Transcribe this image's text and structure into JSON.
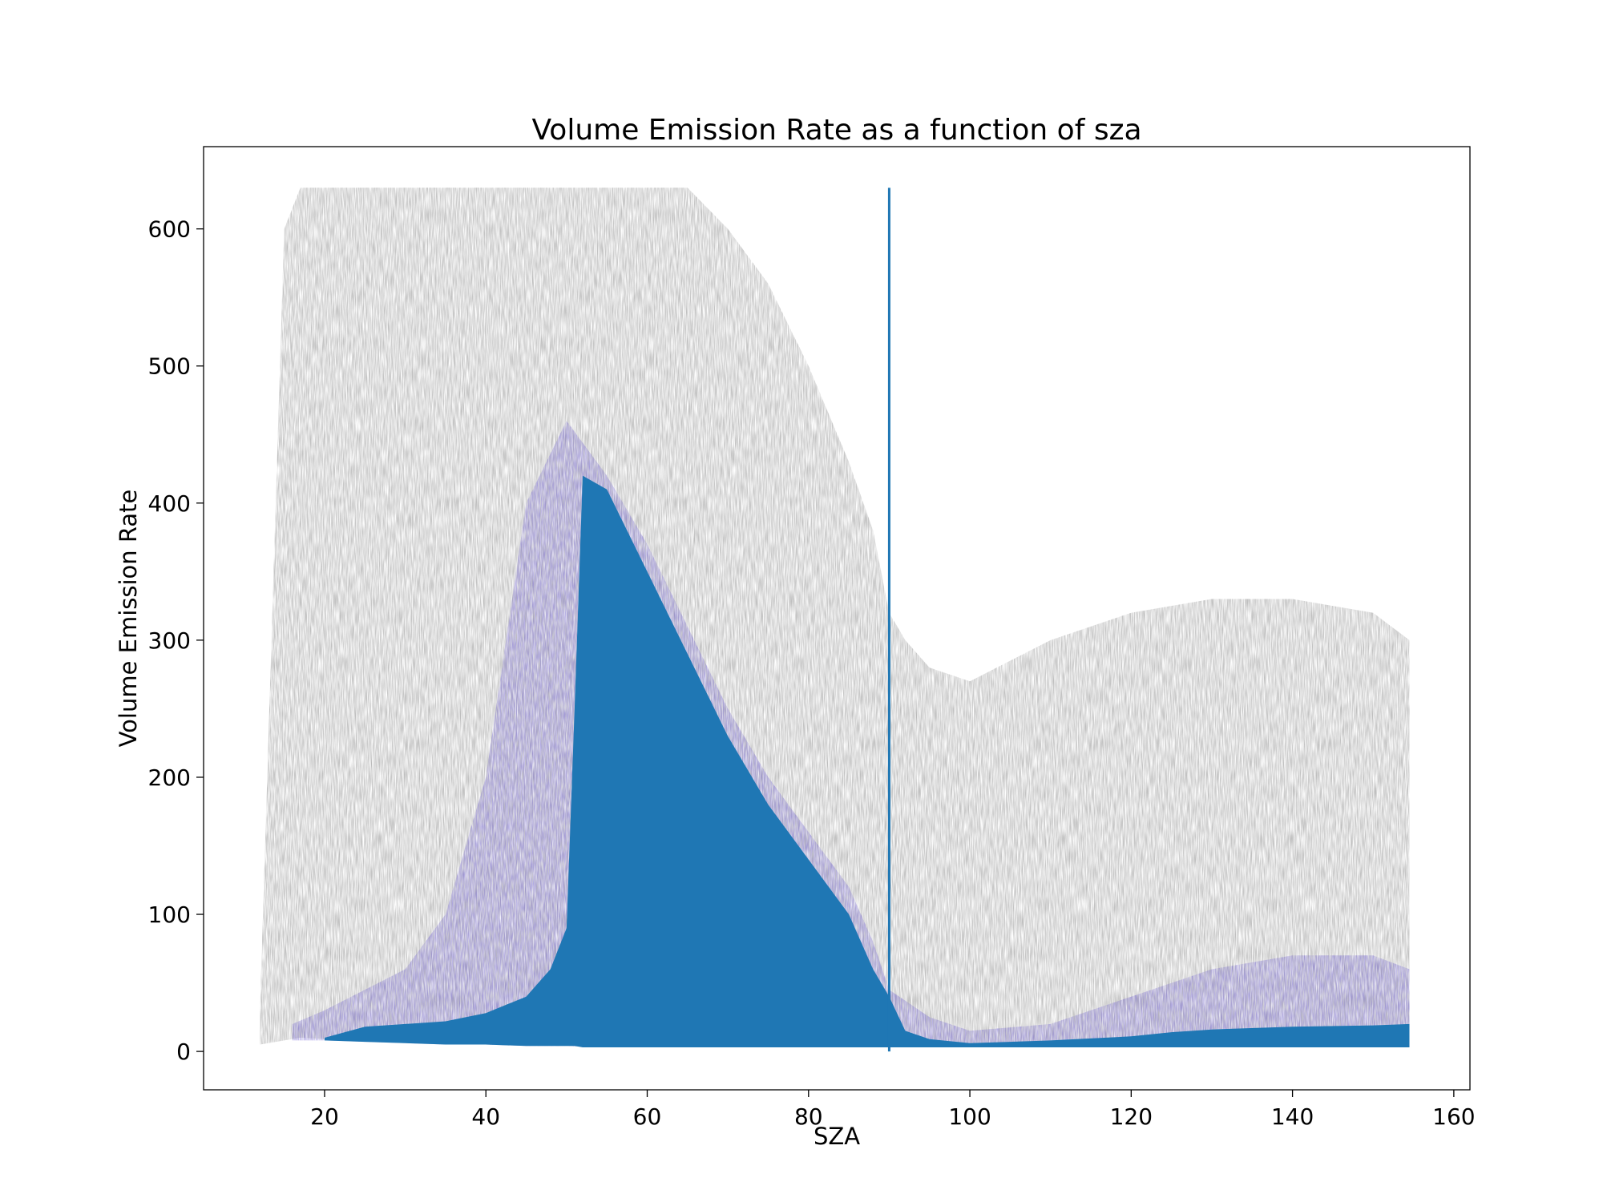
{
  "chart_data": {
    "type": "scatter",
    "title": "Volume Emission Rate as a function of sza",
    "xlabel": "SZA",
    "ylabel": "Volume Emission Rate",
    "xlim": [
      5,
      162
    ],
    "ylim": [
      -28,
      660
    ],
    "xticks": [
      20,
      40,
      60,
      80,
      100,
      120,
      140,
      160
    ],
    "yticks": [
      0,
      100,
      200,
      300,
      400,
      500,
      600
    ],
    "grid": false,
    "legend": "none",
    "colors": {
      "scatter_gray": "#7f7f7f",
      "scatter_purple": "#6a5acd",
      "scatter_blue": "#1f77b4",
      "vline": "#1f77b4"
    },
    "vertical_line": {
      "x": 90,
      "y_from": 0,
      "y_to": 630
    },
    "series": [
      {
        "color": "#7f7f7f",
        "opacity": "faint",
        "x": [
          12,
          15,
          17,
          20,
          25,
          30,
          35,
          40,
          45,
          50,
          55,
          60,
          65,
          70,
          75,
          80,
          85,
          88,
          90,
          92,
          95,
          100,
          110,
          120,
          130,
          140,
          150,
          154.5
        ],
        "y_max": [
          30,
          600,
          630,
          630,
          630,
          630,
          630,
          630,
          630,
          630,
          630,
          630,
          630,
          600,
          560,
          500,
          430,
          380,
          320,
          300,
          280,
          270,
          300,
          320,
          330,
          330,
          320,
          300
        ],
        "y_min": [
          5,
          8,
          10,
          9,
          8,
          7,
          6,
          5,
          4,
          4,
          3,
          3,
          3,
          3,
          3,
          3,
          3,
          3,
          3,
          3,
          3,
          3,
          3,
          4,
          4,
          4,
          4,
          4
        ]
      },
      {
        "color": "#6a5acd",
        "opacity": "medium",
        "x": [
          16,
          20,
          25,
          30,
          35,
          40,
          45,
          50,
          55,
          60,
          65,
          70,
          75,
          80,
          85,
          88,
          90,
          95,
          100,
          110,
          120,
          130,
          140,
          150,
          154.5
        ],
        "y_max": [
          20,
          30,
          45,
          60,
          100,
          200,
          400,
          460,
          420,
          370,
          310,
          250,
          200,
          160,
          120,
          80,
          45,
          25,
          15,
          20,
          40,
          60,
          70,
          70,
          60
        ],
        "y_min": [
          8,
          8,
          7,
          6,
          5,
          5,
          4,
          4,
          3,
          3,
          3,
          3,
          3,
          3,
          3,
          3,
          3,
          3,
          3,
          3,
          3,
          4,
          4,
          4,
          4
        ]
      },
      {
        "color": "#1f77b4",
        "opacity": "opaque",
        "x": [
          20,
          25,
          30,
          35,
          40,
          45,
          48,
          50,
          51,
          52,
          55,
          60,
          65,
          70,
          75,
          80,
          85,
          88,
          90,
          92,
          95,
          100,
          105,
          110,
          120,
          125,
          130,
          140,
          150,
          154.5
        ],
        "y_max": [
          10,
          18,
          20,
          22,
          28,
          40,
          60,
          90,
          250,
          420,
          410,
          350,
          290,
          230,
          180,
          140,
          100,
          60,
          40,
          15,
          9,
          6,
          7,
          8,
          11,
          14,
          16,
          18,
          19,
          20
        ],
        "y_min": [
          8,
          7,
          6,
          5,
          5,
          4,
          4,
          4,
          4,
          3,
          3,
          3,
          3,
          3,
          3,
          3,
          3,
          3,
          3,
          3,
          3,
          3,
          3,
          3,
          3,
          3,
          3,
          3,
          3,
          3
        ]
      }
    ]
  }
}
